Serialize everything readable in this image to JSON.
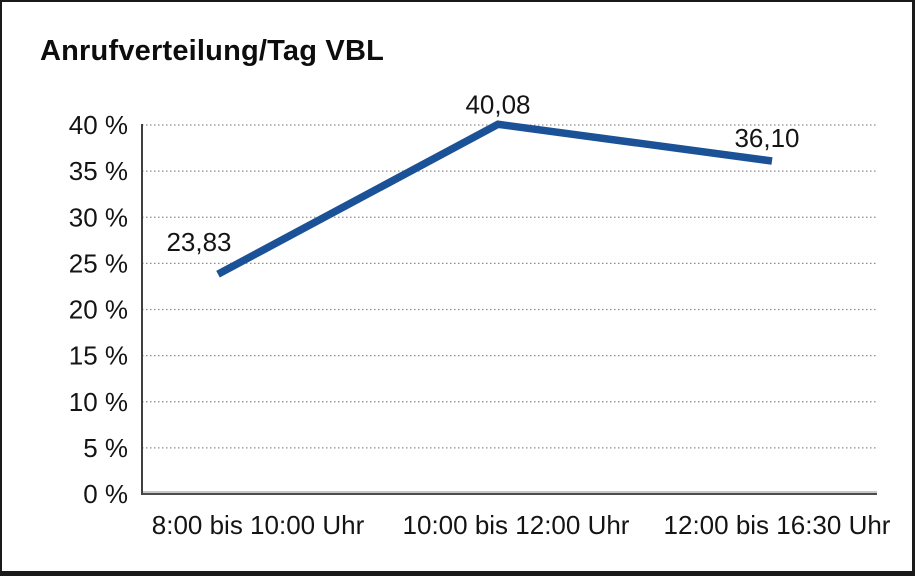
{
  "chart_data": {
    "type": "line",
    "title": "Anrufverteilung/Tag VBL",
    "categories": [
      "8:00 bis 10:00 Uhr",
      "10:00 bis 12:00 Uhr",
      "12:00 bis 16:30 Uhr"
    ],
    "series": [
      {
        "values": [
          23.83,
          40.08,
          36.1
        ]
      }
    ],
    "point_labels": [
      "23,83",
      "40,08",
      "36,10"
    ],
    "ytick_labels": [
      "0 %",
      "5 %",
      "10 %",
      "15 %",
      "20 %",
      "25 %",
      "30 %",
      "35 %",
      "40 %"
    ],
    "ylim": [
      0,
      40
    ],
    "ytick_step": 5,
    "xlabel": "",
    "ylabel": "",
    "grid": "horizontal-dotted",
    "legend": "none",
    "colors": {
      "line": "#1b5196",
      "gridline": "#8c8c8c",
      "axis": "#404040",
      "baseline_dark": "#4d4d4d",
      "baseline_light": "#a8a8a8",
      "text": "#141414",
      "background": "#ffffff",
      "frame_border": "#1a1a1a"
    }
  }
}
